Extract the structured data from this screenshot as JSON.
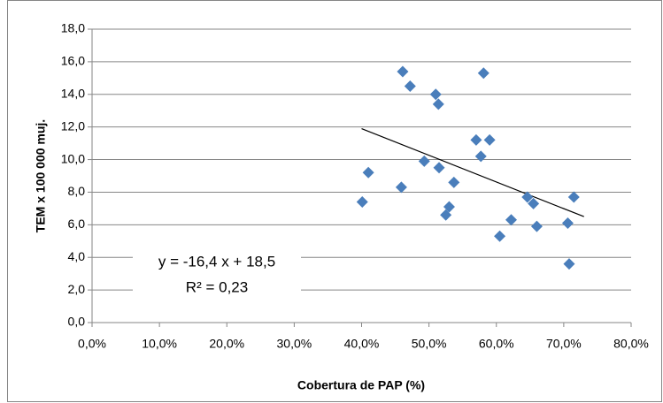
{
  "chart_data": {
    "type": "scatter",
    "x_label": "Cobertura de PAP (%)",
    "y_label": "TEM x 100 000 muj.",
    "x": [
      40.1,
      41.0,
      46.1,
      47.2,
      45.9,
      51.0,
      51.4,
      49.3,
      51.5,
      53.0,
      52.5,
      53.7,
      58.1,
      57.0,
      59.0,
      57.7,
      62.2,
      60.5,
      64.6,
      65.5,
      66.0,
      70.6,
      71.5,
      70.8
    ],
    "series": [
      {
        "color": "#4a7ebb",
        "values": [
          7.4,
          9.2,
          15.4,
          14.5,
          8.3,
          14.0,
          13.4,
          9.9,
          9.5,
          7.1,
          6.6,
          8.6,
          15.3,
          11.2,
          11.2,
          10.2,
          6.3,
          5.3,
          7.7,
          7.3,
          5.9,
          6.1,
          7.7,
          3.6
        ]
      }
    ],
    "trendline": {
      "x": [
        40,
        73
      ],
      "y": [
        11.9,
        6.5
      ],
      "equation": "y = -16,4 x + 18,5",
      "r_squared": "R² = 0,23"
    },
    "xlim": [
      0,
      80
    ],
    "xticks": [
      {
        "value": 0,
        "label": "0,0%"
      },
      {
        "value": 10,
        "label": "10,0%"
      },
      {
        "value": 20,
        "label": "20,0%"
      },
      {
        "value": 30,
        "label": "30,0%"
      },
      {
        "value": 40,
        "label": "40,0%"
      },
      {
        "value": 50,
        "label": "50,0%"
      },
      {
        "value": 60,
        "label": "60,0%"
      },
      {
        "value": 70,
        "label": "70,0%"
      },
      {
        "value": 80,
        "label": "80,0%"
      }
    ],
    "ylim": [
      0,
      18
    ],
    "yticks": [
      {
        "value": 0,
        "label": "0,0"
      },
      {
        "value": 2,
        "label": "2,0"
      },
      {
        "value": 4,
        "label": "4,0"
      },
      {
        "value": 6,
        "label": "6,0"
      },
      {
        "value": 8,
        "label": "8,0"
      },
      {
        "value": 10,
        "label": "10,0"
      },
      {
        "value": 12,
        "label": "12,0"
      },
      {
        "value": 14,
        "label": "14,0"
      },
      {
        "value": 16,
        "label": "16,0"
      },
      {
        "value": 18,
        "label": "18,0"
      }
    ],
    "grid": true
  }
}
